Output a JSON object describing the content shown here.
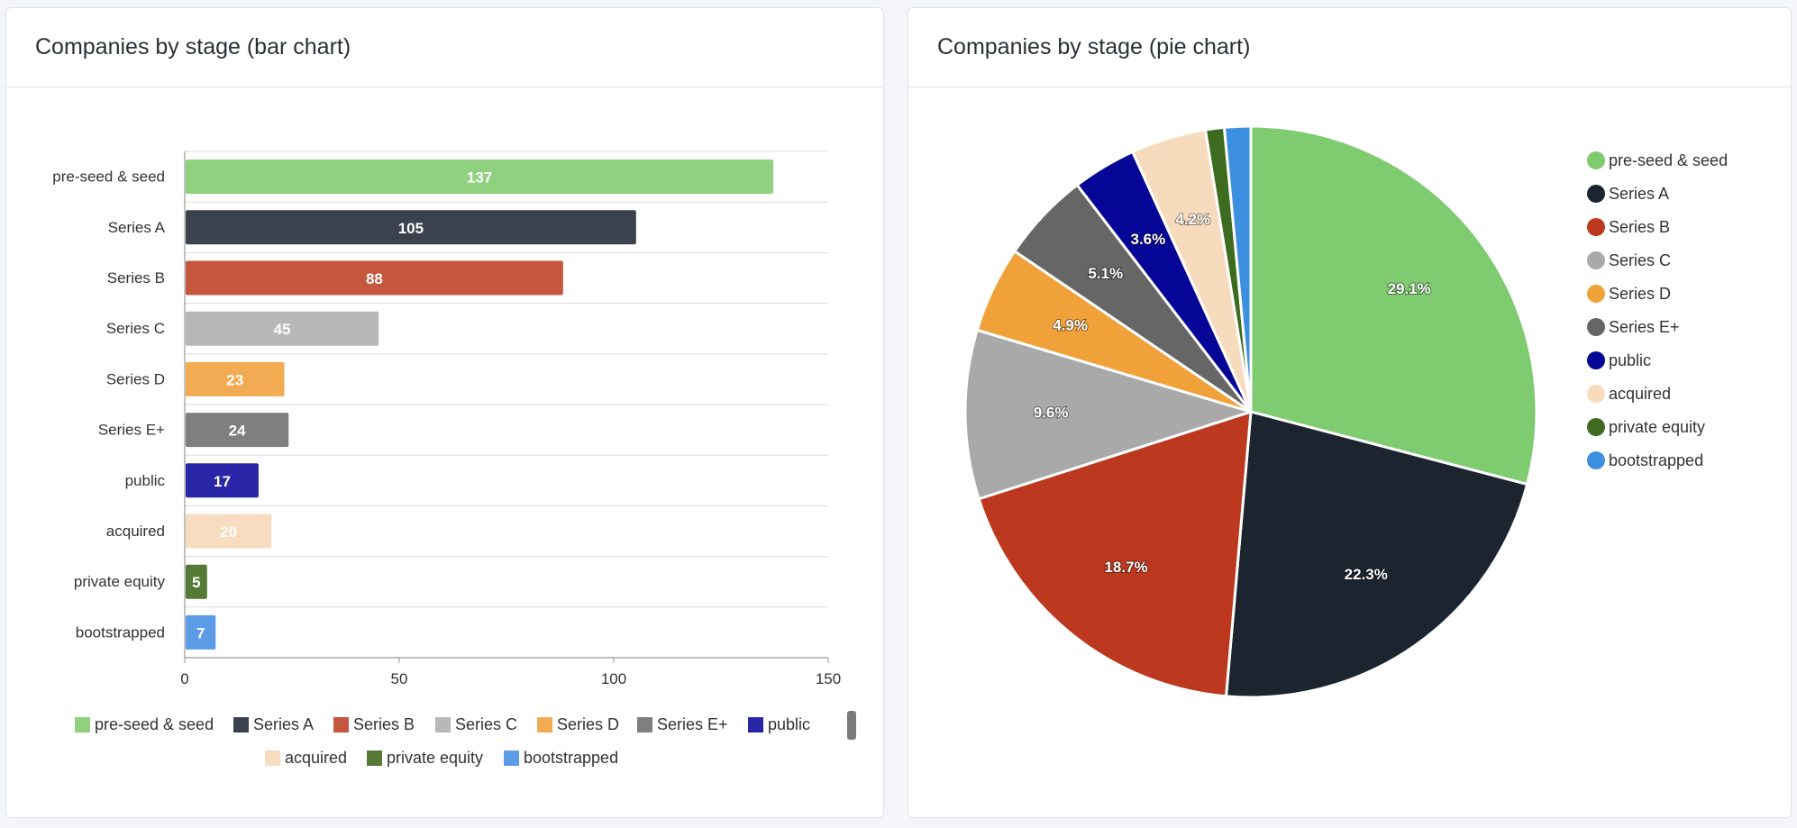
{
  "panels": {
    "bar_title": "Companies by stage (bar chart)",
    "pie_title": "Companies by stage (pie chart)"
  },
  "chart_data": [
    {
      "type": "bar",
      "orientation": "horizontal",
      "title": "Companies by stage (bar chart)",
      "categories": [
        "pre-seed & seed",
        "Series A",
        "Series B",
        "Series C",
        "Series D",
        "Series E+",
        "public",
        "acquired",
        "private equity",
        "bootstrapped"
      ],
      "values": [
        137,
        105,
        88,
        45,
        23,
        24,
        17,
        20,
        5,
        7
      ],
      "colors": [
        "#8fd17e",
        "#3b424e",
        "#c5573e",
        "#b8b8b8",
        "#f2ab53",
        "#7f7f7f",
        "#2a26a8",
        "#f8dcc0",
        "#557a36",
        "#5c9ce6"
      ],
      "xlim": [
        0,
        150
      ],
      "xticks": [
        0,
        50,
        100,
        150
      ],
      "grid": true,
      "legend": "bottom"
    },
    {
      "type": "pie",
      "title": "Companies by stage (pie chart)",
      "labels": [
        "pre-seed & seed",
        "Series A",
        "Series B",
        "Series C",
        "Series D",
        "Series E+",
        "public",
        "acquired",
        "private equity",
        "bootstrapped"
      ],
      "values": [
        137,
        105,
        88,
        45,
        23,
        24,
        17,
        20,
        5,
        7
      ],
      "percent_labels": [
        "29.1%",
        "22.3%",
        "18.7%",
        "9.6%",
        "4.9%",
        "5.1%",
        "3.6%",
        "4.2%",
        "",
        ""
      ],
      "colors": [
        "#7ecb70",
        "#1c2430",
        "#bc3920",
        "#a9a9a9",
        "#f1a13a",
        "#666666",
        "#050596",
        "#f7dbbd",
        "#3d6b1f",
        "#3d8fe0"
      ],
      "legend": "right"
    }
  ]
}
